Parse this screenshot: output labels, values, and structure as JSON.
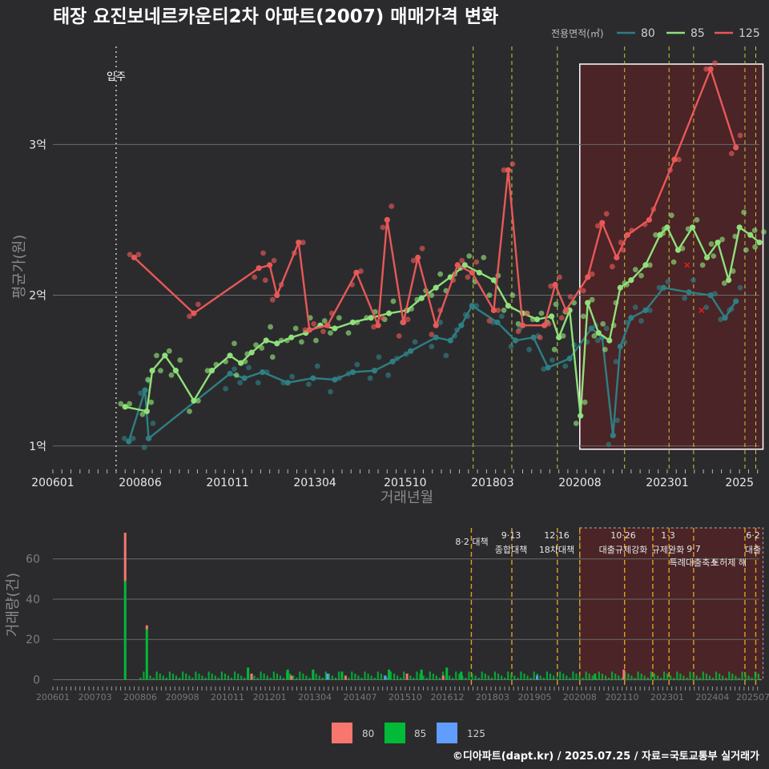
{
  "title": "태장 요진보네르카운티2차 아파트(2007) 매매가격 변화",
  "source": "©디아파트(dapt.kr) / 2025.07.25 / 자료=국토교통부 실거래가",
  "colors": {
    "s80": "#2e7f84",
    "s85": "#8fe07a",
    "s125": "#e85858",
    "b80": "#f8766d",
    "b85": "#00ba38",
    "b125": "#619cff"
  },
  "chart_data": [
    {
      "type": "line",
      "xlabel": "거래년월",
      "ylabel": "평균가(원)",
      "legend_title": "전용면적(㎡)",
      "legend_labels": [
        "80",
        "85",
        "125"
      ],
      "x_range": [
        "2006-01",
        "2025-07"
      ],
      "ylim": [
        0.85,
        3.65
      ],
      "y_ticks": [
        {
          "v": 1,
          "label": "1억"
        },
        {
          "v": 2,
          "label": "2억"
        },
        {
          "v": 3,
          "label": "3억"
        }
      ],
      "x_ticks": [
        "200601",
        "200806",
        "201011",
        "201304",
        "201510",
        "201803",
        "202008",
        "202301",
        "2025"
      ],
      "annotations": {
        "move_in": "입주",
        "move_in_date": 2007.75
      },
      "policy_lines": [
        2017.63,
        2018.7,
        2019.96,
        2021.82,
        2023.05,
        2023.73,
        2025.15,
        2025.45
      ],
      "highlight": [
        2020.58,
        2025.65
      ],
      "series": [
        {
          "name": "80",
          "x": [
            2008.1,
            2008.55,
            2008.65,
            2010.9,
            2011.3,
            2011.8,
            2012.5,
            2013.2,
            2013.8,
            2014.3,
            2014.9,
            2015.4,
            2015.9,
            2016.6,
            2017.0,
            2017.3,
            2017.6,
            2018.3,
            2018.8,
            2019.3,
            2019.7,
            2020.3,
            2020.9,
            2021.2,
            2021.5,
            2021.7,
            2022.0,
            2022.4,
            2022.9,
            2023.6,
            2024.2,
            2024.6,
            2024.9
          ],
          "y": [
            1.03,
            1.37,
            1.05,
            1.48,
            1.45,
            1.49,
            1.42,
            1.45,
            1.44,
            1.49,
            1.5,
            1.56,
            1.63,
            1.72,
            1.7,
            1.8,
            1.93,
            1.82,
            1.7,
            1.72,
            1.52,
            1.58,
            1.78,
            1.72,
            1.07,
            1.66,
            1.85,
            1.9,
            2.05,
            2.02,
            2.0,
            1.85,
            1.96
          ]
        },
        {
          "name": "85",
          "x": [
            2008.0,
            2008.6,
            2008.75,
            2009.1,
            2009.4,
            2009.9,
            2010.4,
            2010.9,
            2011.2,
            2011.5,
            2011.9,
            2012.2,
            2012.6,
            2013.0,
            2013.4,
            2013.8,
            2014.3,
            2014.8,
            2015.3,
            2015.8,
            2016.2,
            2016.6,
            2017.0,
            2017.4,
            2017.8,
            2018.2,
            2018.6,
            2019.0,
            2019.4,
            2019.8,
            2020.0,
            2020.3,
            2020.6,
            2020.8,
            2021.1,
            2021.4,
            2021.7,
            2022.0,
            2022.4,
            2022.8,
            2023.0,
            2023.3,
            2023.7,
            2024.1,
            2024.4,
            2024.7,
            2025.0,
            2025.3,
            2025.55
          ],
          "y": [
            1.26,
            1.23,
            1.5,
            1.6,
            1.5,
            1.3,
            1.5,
            1.6,
            1.55,
            1.62,
            1.7,
            1.68,
            1.72,
            1.75,
            1.8,
            1.78,
            1.82,
            1.85,
            1.88,
            1.9,
            1.98,
            2.05,
            2.12,
            2.2,
            2.15,
            2.1,
            1.93,
            1.88,
            1.84,
            1.86,
            1.72,
            1.9,
            1.2,
            1.95,
            1.75,
            1.7,
            2.05,
            2.1,
            2.2,
            2.4,
            2.45,
            2.3,
            2.45,
            2.25,
            2.35,
            2.1,
            2.45,
            2.4,
            2.35
          ]
        },
        {
          "name": "125",
          "x": [
            2008.25,
            2009.9,
            2011.7,
            2012.0,
            2012.2,
            2012.8,
            2013.1,
            2013.6,
            2014.4,
            2015.0,
            2015.25,
            2015.7,
            2016.1,
            2016.6,
            2017.2,
            2017.6,
            2018.2,
            2018.6,
            2019.0,
            2019.6,
            2019.9,
            2020.2,
            2020.8,
            2021.2,
            2021.6,
            2021.9,
            2022.5,
            2023.2,
            2024.2,
            2024.9
          ],
          "y": [
            2.25,
            1.88,
            2.18,
            2.2,
            2.0,
            2.35,
            1.77,
            1.8,
            2.15,
            1.8,
            2.5,
            1.82,
            2.25,
            1.8,
            2.2,
            2.15,
            1.9,
            2.83,
            1.8,
            1.8,
            2.07,
            1.9,
            2.12,
            2.48,
            2.25,
            2.4,
            2.5,
            2.9,
            3.5,
            2.98
          ]
        }
      ]
    },
    {
      "type": "bar",
      "ylabel": "거래량(건)",
      "ylim": [
        -3,
        77
      ],
      "y_ticks": [
        0,
        20,
        40,
        60
      ],
      "x_ticks": [
        "200601",
        "200703",
        "200806",
        "200908",
        "201011",
        "201201",
        "201304",
        "201407",
        "201510",
        "201612",
        "201803",
        "201905",
        "202008",
        "202110",
        "202301",
        "202404",
        "202507"
      ],
      "legend_labels": [
        "80",
        "85",
        "125"
      ],
      "policies": [
        {
          "date": "8·2 대책",
          "name": ""
        },
        {
          "date": "9·13",
          "name": "종합대책"
        },
        {
          "date": "12·16",
          "name": "18차대책"
        },
        {
          "date": "10·26",
          "name": "대출규제강화"
        },
        {
          "date": "1·3",
          "name": "규제완화"
        },
        {
          "date": "9·7",
          "name": "특례대출축소"
        },
        {
          "date": "",
          "name": "토허제 해"
        },
        {
          "date": "6·2",
          "name": "대출"
        }
      ],
      "series": [
        {
          "name": "80",
          "x": [
            2008.0,
            2008.6,
            2011.5,
            2012.6,
            2014.1,
            2015.8,
            2016.8,
            2021.8
          ],
          "values": [
            24,
            2,
            3,
            2,
            2,
            3,
            2,
            5
          ]
        },
        {
          "name": "85",
          "x": [
            2008.0,
            2008.6,
            2011.4,
            2012.5,
            2013.2,
            2014.0,
            2015.3,
            2016.2,
            2016.9,
            2017.3,
            2021.0
          ],
          "values": [
            49,
            25,
            6,
            5,
            5,
            4,
            5,
            5,
            6,
            4,
            3
          ]
        },
        {
          "name": "125",
          "x": [
            2013.6,
            2015.2,
            2019.4
          ],
          "values": [
            3,
            2,
            2
          ]
        }
      ]
    }
  ]
}
